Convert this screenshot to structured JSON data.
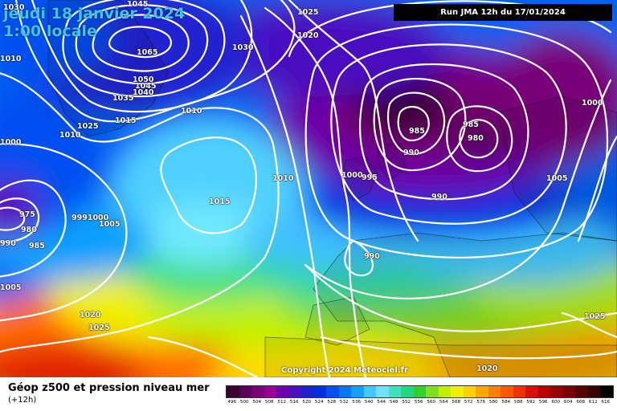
{
  "header": {
    "date_line": "jeudi 18 janvier 2024",
    "time_line": "1:00 locale",
    "run_label": "Run JMA 12h du 17/01/2024"
  },
  "map": {
    "copyright": "Copyright 2024 Meteociel.fr",
    "isobar_labels": [
      {
        "text": "1030"
      },
      {
        "text": "1045"
      },
      {
        "text": "1025"
      },
      {
        "text": "1020"
      },
      {
        "text": "1030"
      },
      {
        "text": "1010"
      },
      {
        "text": "1065"
      },
      {
        "text": "1050"
      },
      {
        "text": "1045"
      },
      {
        "text": "1040"
      },
      {
        "text": "1035"
      },
      {
        "text": "1025"
      },
      {
        "text": "1015"
      },
      {
        "text": "1010"
      },
      {
        "text": "1010"
      },
      {
        "text": "1000"
      },
      {
        "text": "1010"
      },
      {
        "text": "1000"
      },
      {
        "text": "995"
      },
      {
        "text": "1015"
      },
      {
        "text": "985"
      },
      {
        "text": "990"
      },
      {
        "text": "985"
      },
      {
        "text": "980"
      },
      {
        "text": "990"
      },
      {
        "text": "1000"
      },
      {
        "text": "1005"
      },
      {
        "text": "975"
      },
      {
        "text": "980"
      },
      {
        "text": "990"
      },
      {
        "text": "985"
      },
      {
        "text": "9991000"
      },
      {
        "text": "1005"
      },
      {
        "text": "990"
      },
      {
        "text": "1005"
      },
      {
        "text": "1020"
      },
      {
        "text": "1025"
      },
      {
        "text": "1025"
      },
      {
        "text": "1020"
      }
    ]
  },
  "legend": {
    "title": "Géop z500 et pression niveau mer",
    "subtitle": "(+12h)",
    "scale": [
      {
        "value": "496",
        "color": "#3a0030"
      },
      {
        "value": "500",
        "color": "#5a005a"
      },
      {
        "value": "504",
        "color": "#780078"
      },
      {
        "value": "508",
        "color": "#960096"
      },
      {
        "value": "512",
        "color": "#6a00aa"
      },
      {
        "value": "516",
        "color": "#4a10c0"
      },
      {
        "value": "520",
        "color": "#2020d0"
      },
      {
        "value": "524",
        "color": "#0030e0"
      },
      {
        "value": "528",
        "color": "#0050f0"
      },
      {
        "value": "532",
        "color": "#0078f8"
      },
      {
        "value": "536",
        "color": "#10a0ff"
      },
      {
        "value": "540",
        "color": "#40c8ff"
      },
      {
        "value": "544",
        "color": "#70e0ff"
      },
      {
        "value": "548",
        "color": "#40e0c0"
      },
      {
        "value": "552",
        "color": "#20d880"
      },
      {
        "value": "556",
        "color": "#30d030"
      },
      {
        "value": "560",
        "color": "#80e020"
      },
      {
        "value": "564",
        "color": "#c0f000"
      },
      {
        "value": "568",
        "color": "#f0f000"
      },
      {
        "value": "572",
        "color": "#ffd000"
      },
      {
        "value": "576",
        "color": "#ffa800"
      },
      {
        "value": "580",
        "color": "#ff8000"
      },
      {
        "value": "584",
        "color": "#ff5800"
      },
      {
        "value": "588",
        "color": "#f03000"
      },
      {
        "value": "592",
        "color": "#d81000"
      },
      {
        "value": "596",
        "color": "#b80000"
      },
      {
        "value": "600",
        "color": "#980000"
      },
      {
        "value": "604",
        "color": "#780000"
      },
      {
        "value": "608",
        "color": "#580000"
      },
      {
        "value": "612",
        "color": "#380000"
      },
      {
        "value": "616",
        "color": "#000000"
      }
    ]
  }
}
